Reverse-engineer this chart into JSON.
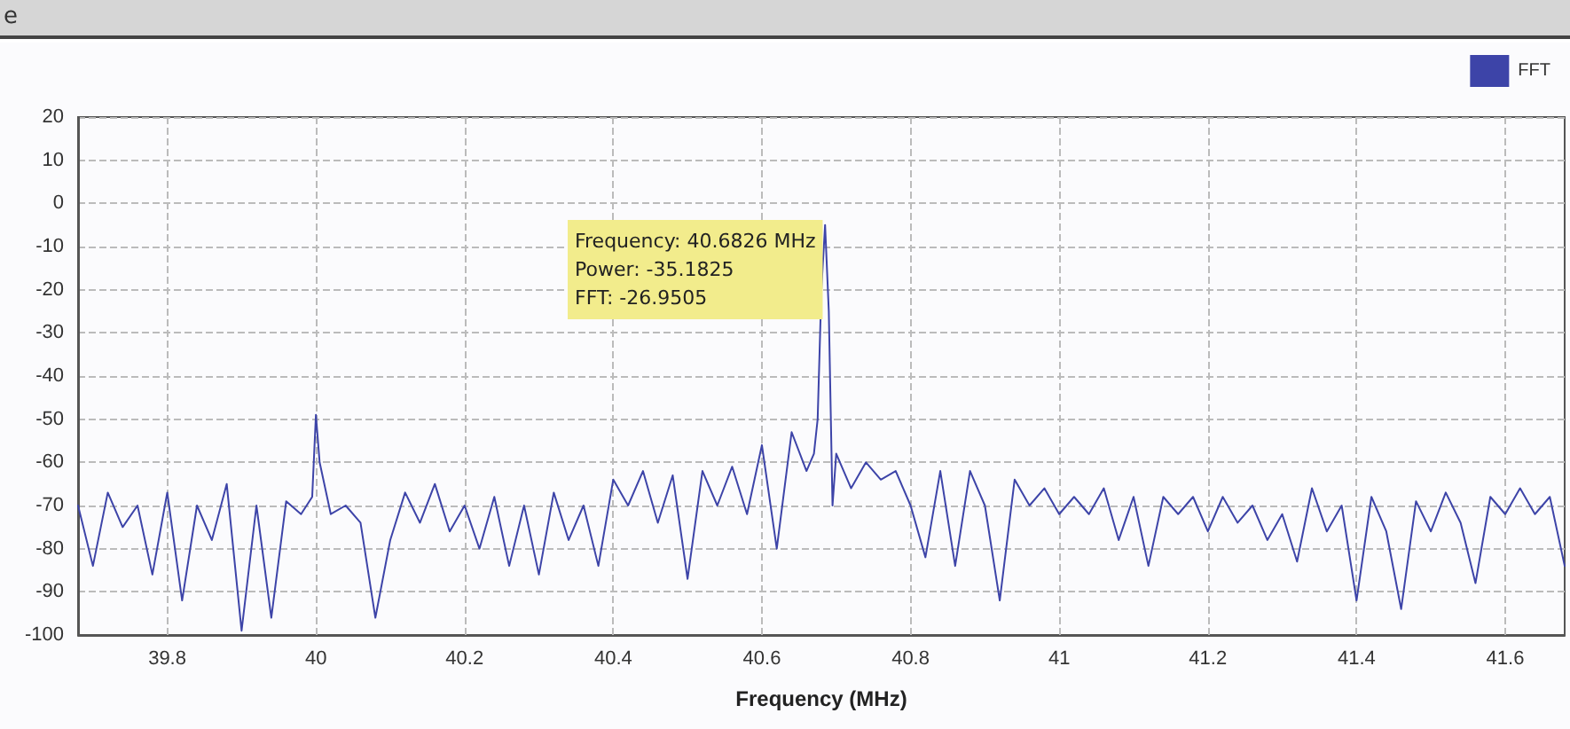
{
  "chart_data": {
    "type": "line",
    "title": "e",
    "xlabel": "Frequency (MHz)",
    "x": [
      39.68,
      39.7,
      39.72,
      39.74,
      39.76,
      39.78,
      39.8,
      39.82,
      39.84,
      39.86,
      39.88,
      39.9,
      39.92,
      39.94,
      39.96,
      39.98,
      39.995,
      40.0,
      40.005,
      40.02,
      40.04,
      40.06,
      40.08,
      40.1,
      40.12,
      40.14,
      40.16,
      40.18,
      40.2,
      40.22,
      40.24,
      40.26,
      40.28,
      40.3,
      40.32,
      40.34,
      40.36,
      40.38,
      40.4,
      40.42,
      40.44,
      40.46,
      40.48,
      40.5,
      40.52,
      40.54,
      40.56,
      40.58,
      40.6,
      40.62,
      40.64,
      40.66,
      40.67,
      40.675,
      40.68,
      40.685,
      40.69,
      40.695,
      40.7,
      40.72,
      40.74,
      40.76,
      40.78,
      40.8,
      40.82,
      40.84,
      40.86,
      40.88,
      40.9,
      40.92,
      40.94,
      40.96,
      40.98,
      41.0,
      41.02,
      41.04,
      41.06,
      41.08,
      41.1,
      41.12,
      41.14,
      41.16,
      41.18,
      41.2,
      41.22,
      41.24,
      41.26,
      41.28,
      41.3,
      41.32,
      41.34,
      41.36,
      41.38,
      41.4,
      41.42,
      41.44,
      41.46,
      41.48,
      41.5,
      41.52,
      41.54,
      41.56,
      41.58,
      41.6,
      41.62,
      41.64,
      41.66,
      41.68
    ],
    "series": [
      {
        "name": "FFT",
        "color": "#3d44a8",
        "values": [
          -70,
          -84,
          -67,
          -75,
          -70,
          -86,
          -67,
          -92,
          -70,
          -78,
          -65,
          -99,
          -70,
          -96,
          -69,
          -72,
          -68,
          -49,
          -60,
          -72,
          -70,
          -74,
          -96,
          -78,
          -67,
          -74,
          -65,
          -76,
          -70,
          -80,
          -68,
          -84,
          -70,
          -86,
          -67,
          -78,
          -70,
          -84,
          -64,
          -70,
          -62,
          -74,
          -63,
          -87,
          -62,
          -70,
          -61,
          -72,
          -56,
          -80,
          -53,
          -62,
          -58,
          -50,
          -20,
          -5,
          -25,
          -70,
          -58,
          -66,
          -60,
          -64,
          -62,
          -70,
          -82,
          -62,
          -84,
          -62,
          -70,
          -92,
          -64,
          -70,
          -66,
          -72,
          -68,
          -72,
          -66,
          -78,
          -68,
          -84,
          -68,
          -72,
          -68,
          -76,
          -68,
          -74,
          -70,
          -78,
          -72,
          -83,
          -66,
          -76,
          -70,
          -92,
          -68,
          -76,
          -94,
          -69,
          -76,
          -67,
          -74,
          -88,
          -68,
          -72,
          -66,
          -72,
          -68,
          -84
        ]
      }
    ],
    "xlim": [
      39.68,
      41.68
    ],
    "xticks": [
      39.8,
      40,
      40.2,
      40.4,
      40.6,
      40.8,
      41,
      41.2,
      41.4,
      41.6
    ],
    "ylim": [
      -100,
      20
    ],
    "yticks": [
      -100,
      -90,
      -80,
      -70,
      -60,
      -50,
      -40,
      -30,
      -20,
      -10,
      0,
      10,
      20
    ],
    "grid": true,
    "legend": "top right",
    "marker": "none",
    "line_style": "solid",
    "annotations": [
      "Frequency: 40.6826 MHz\nPower: -35.1825\nFFT: -26.9505"
    ]
  }
}
